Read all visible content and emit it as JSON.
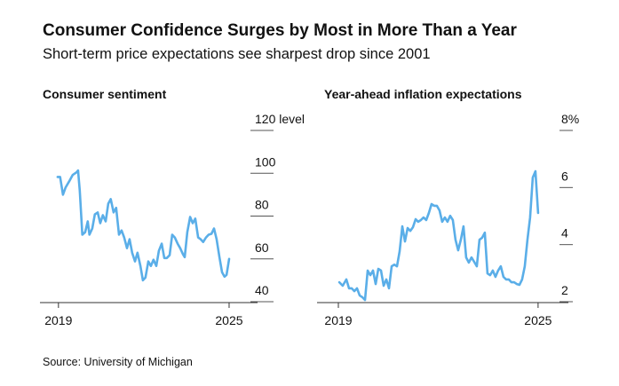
{
  "title": "Consumer Confidence Surges by Most in More Than a Year",
  "subtitle": "Short-term price expectations see sharpest drop since 2001",
  "source": "Source: University of Michigan",
  "chart_data": [
    {
      "type": "line",
      "title": "Consumer sentiment",
      "color": "#5aaee8",
      "xlim": [
        2018.35,
        2026
      ],
      "xticks": [
        2019,
        2025
      ],
      "ylim": [
        40,
        120
      ],
      "yticks": [
        40,
        60,
        80,
        100,
        {
          "value": 120,
          "label": "120 level"
        }
      ],
      "x": [
        2018.97,
        2019.06,
        2019.16,
        2019.25,
        2019.38,
        2019.5,
        2019.63,
        2019.69,
        2019.75,
        2019.84,
        2019.94,
        2020.03,
        2020.09,
        2020.19,
        2020.28,
        2020.38,
        2020.47,
        2020.56,
        2020.66,
        2020.75,
        2020.84,
        2020.94,
        2021.03,
        2021.13,
        2021.22,
        2021.31,
        2021.41,
        2021.5,
        2021.59,
        2021.69,
        2021.78,
        2021.88,
        2021.97,
        2022.06,
        2022.16,
        2022.25,
        2022.34,
        2022.44,
        2022.53,
        2022.63,
        2022.72,
        2022.81,
        2022.91,
        2023,
        2023.09,
        2023.19,
        2023.28,
        2023.38,
        2023.44,
        2023.53,
        2023.63,
        2023.72,
        2023.81,
        2023.91,
        2024,
        2024.09,
        2024.19,
        2024.28,
        2024.38,
        2024.47,
        2024.56,
        2024.66,
        2024.75,
        2024.84,
        2024.91,
        2025
      ],
      "values": [
        98.3,
        98.3,
        90,
        93.3,
        96.3,
        99.2,
        100.4,
        101.3,
        92,
        71.3,
        72.5,
        77.5,
        71.3,
        74.2,
        80.8,
        81.7,
        76.7,
        80.4,
        77.5,
        85.8,
        87.9,
        81.7,
        83.8,
        71.3,
        73.3,
        70,
        65,
        69.2,
        62.9,
        58.8,
        62.9,
        56.7,
        50,
        51.3,
        58.8,
        56.7,
        59.6,
        56.7,
        63.8,
        67.1,
        60.4,
        60.4,
        61.7,
        71.3,
        70,
        67.1,
        65,
        62.1,
        60.8,
        72.5,
        79.6,
        76.7,
        78.8,
        70,
        69.2,
        67.9,
        70,
        71.3,
        71.7,
        74.2,
        69.2,
        60.8,
        53.8,
        51.7,
        52.5,
        60
      ]
    },
    {
      "type": "line",
      "title": "Year-ahead inflation expectations",
      "color": "#5aaee8",
      "xlim": [
        2018.36,
        2025.91
      ],
      "xticks": [
        2019,
        2025
      ],
      "ylim": [
        2,
        8
      ],
      "yticks": [
        2,
        4,
        6,
        {
          "value": 8,
          "label": "8%"
        }
      ],
      "x": [
        2019.03,
        2019.13,
        2019.24,
        2019.32,
        2019.4,
        2019.48,
        2019.56,
        2019.64,
        2019.72,
        2019.8,
        2019.88,
        2019.96,
        2020.04,
        2020.12,
        2020.2,
        2020.28,
        2020.36,
        2020.44,
        2020.52,
        2020.6,
        2020.68,
        2020.76,
        2020.84,
        2020.92,
        2021,
        2021.08,
        2021.16,
        2021.24,
        2021.32,
        2021.4,
        2021.48,
        2021.56,
        2021.64,
        2021.72,
        2021.8,
        2021.88,
        2021.96,
        2022.04,
        2022.12,
        2022.2,
        2022.28,
        2022.36,
        2022.44,
        2022.52,
        2022.6,
        2022.68,
        2022.76,
        2022.84,
        2022.92,
        2023,
        2023.08,
        2023.16,
        2023.24,
        2023.32,
        2023.4,
        2023.48,
        2023.56,
        2023.64,
        2023.72,
        2023.8,
        2023.88,
        2023.96,
        2024.04,
        2024.12,
        2024.2,
        2024.28,
        2024.36,
        2024.44,
        2024.52,
        2024.6,
        2024.68,
        2024.76,
        2024.84,
        2024.92,
        2025
      ],
      "values": [
        2.68,
        2.56,
        2.78,
        2.47,
        2.47,
        2.37,
        2.47,
        2.22,
        2.16,
        2.06,
        3.09,
        2.93,
        3.09,
        2.62,
        3.15,
        3.09,
        2.56,
        2.78,
        2.47,
        3.24,
        3.3,
        3.24,
        3.77,
        4.64,
        4.11,
        4.58,
        4.48,
        4.61,
        4.89,
        4.8,
        4.86,
        4.95,
        4.86,
        5.11,
        5.42,
        5.36,
        5.36,
        5.2,
        4.8,
        4.95,
        4.8,
        5.01,
        4.86,
        4.17,
        3.8,
        4.17,
        4.64,
        3.55,
        3.37,
        3.55,
        3.4,
        3.24,
        4.17,
        4.24,
        4.42,
        2.99,
        2.93,
        3.09,
        2.87,
        3.09,
        3.24,
        2.87,
        2.78,
        2.78,
        2.68,
        2.68,
        2.62,
        2.59,
        2.78,
        3.24,
        4.17,
        4.95,
        6.35,
        6.57,
        5.11
      ]
    }
  ]
}
